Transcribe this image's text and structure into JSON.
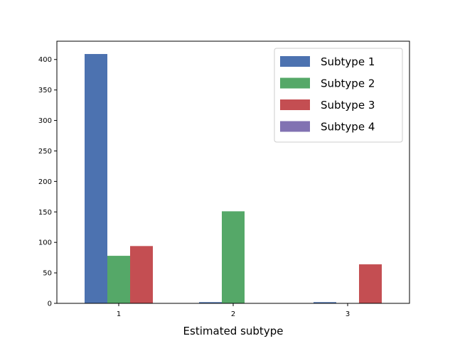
{
  "chart_data": {
    "type": "bar",
    "title": "",
    "xlabel": "Estimated subtype",
    "ylabel": "",
    "categories": [
      "1",
      "2",
      "3"
    ],
    "ylim": [
      0,
      430
    ],
    "yticks": [
      0,
      50,
      100,
      150,
      200,
      250,
      300,
      350,
      400
    ],
    "grid": false,
    "legend_position": "top-right",
    "series": [
      {
        "name": "Subtype 1",
        "color": "#4c72b0",
        "values": [
          409,
          2,
          2
        ]
      },
      {
        "name": "Subtype 2",
        "color": "#55a868",
        "values": [
          78,
          151,
          0
        ]
      },
      {
        "name": "Subtype 3",
        "color": "#c44e52",
        "values": [
          94,
          0,
          64
        ]
      },
      {
        "name": "Subtype 4",
        "color": "#8172b2",
        "values": [
          0,
          0,
          0
        ]
      }
    ]
  }
}
